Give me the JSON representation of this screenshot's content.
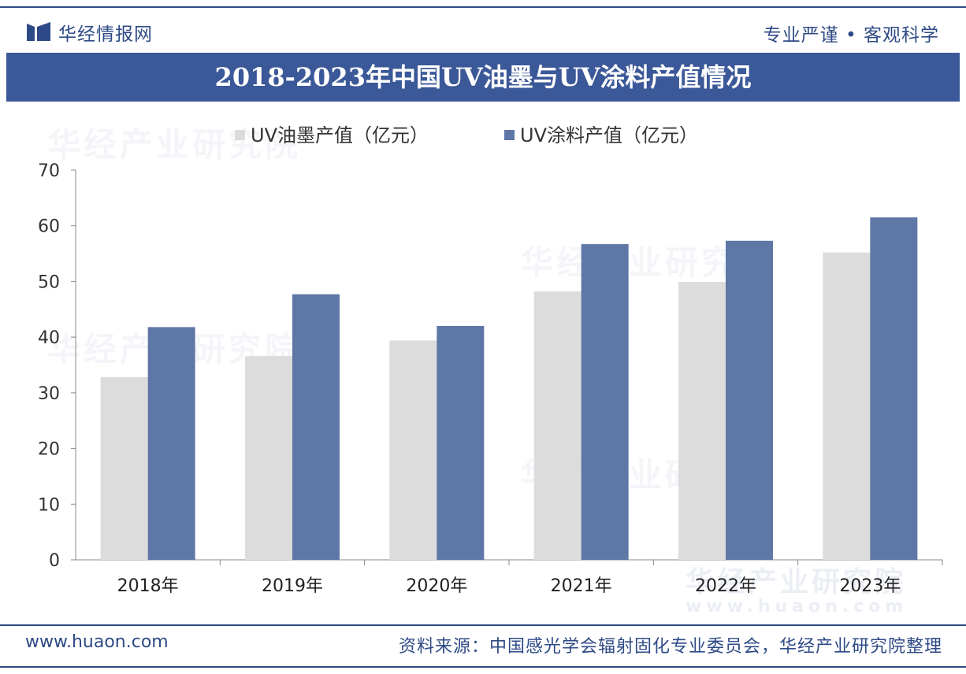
{
  "header": {
    "brand": "华经情报网",
    "slogan": "专业严谨 • 客观科学"
  },
  "watermark": {
    "text": "华经产业研究院",
    "url": "www.huaon.com"
  },
  "footer": {
    "url": "www.huaon.com",
    "source": "资料来源：中国感光学会辐射固化专业委员会，华经产业研究院整理"
  },
  "colors": {
    "brand": "#2e4a86",
    "title_bg": "#3b5898",
    "series_ink": "#dcdcdc",
    "series_coating": "#5e77a6"
  },
  "chart_data": {
    "type": "bar",
    "title": "2018-2023年中国UV油墨与UV涂料产值情况",
    "categories": [
      "2018年",
      "2019年",
      "2020年",
      "2021年",
      "2022年",
      "2023年"
    ],
    "series": [
      {
        "name": "UV油墨产值（亿元）",
        "color": "#dcdcdc",
        "values": [
          32.8,
          36.6,
          39.4,
          48.2,
          49.9,
          55.2
        ]
      },
      {
        "name": "UV涂料产值（亿元）",
        "color": "#5e77a6",
        "values": [
          41.8,
          47.7,
          42.0,
          56.7,
          57.3,
          61.5
        ]
      }
    ],
    "ylim": [
      0,
      70
    ],
    "yticks": [
      0,
      10,
      20,
      30,
      40,
      50,
      60,
      70
    ],
    "legend_position": "top-left",
    "xlabel": "",
    "ylabel": "",
    "grid": false
  }
}
